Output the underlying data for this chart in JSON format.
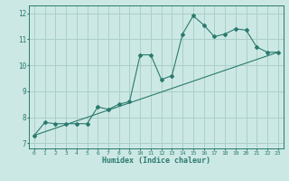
{
  "xlabel": "Humidex (Indice chaleur)",
  "bg_color": "#cce8e4",
  "grid_color": "#aacfca",
  "line_color": "#2a7a6e",
  "xlim": [
    -0.5,
    23.5
  ],
  "ylim": [
    6.8,
    12.3
  ],
  "xticks": [
    0,
    1,
    2,
    3,
    4,
    5,
    6,
    7,
    8,
    9,
    10,
    11,
    12,
    13,
    14,
    15,
    16,
    17,
    18,
    19,
    20,
    21,
    22,
    23
  ],
  "yticks": [
    7,
    8,
    9,
    10,
    11,
    12
  ],
  "line1_x": [
    0,
    1,
    2,
    3,
    4,
    5,
    6,
    7,
    8,
    9,
    10,
    11,
    12,
    13,
    14,
    15,
    16,
    17,
    18,
    19,
    20,
    21,
    22,
    23
  ],
  "line1_y": [
    7.3,
    7.8,
    7.75,
    7.75,
    7.75,
    7.75,
    8.4,
    8.3,
    8.5,
    8.6,
    10.4,
    10.4,
    9.45,
    9.6,
    11.2,
    11.9,
    11.55,
    11.1,
    11.2,
    11.4,
    11.35,
    10.7,
    10.5,
    10.5
  ],
  "line2_x": [
    0,
    23
  ],
  "line2_y": [
    7.3,
    10.5
  ]
}
